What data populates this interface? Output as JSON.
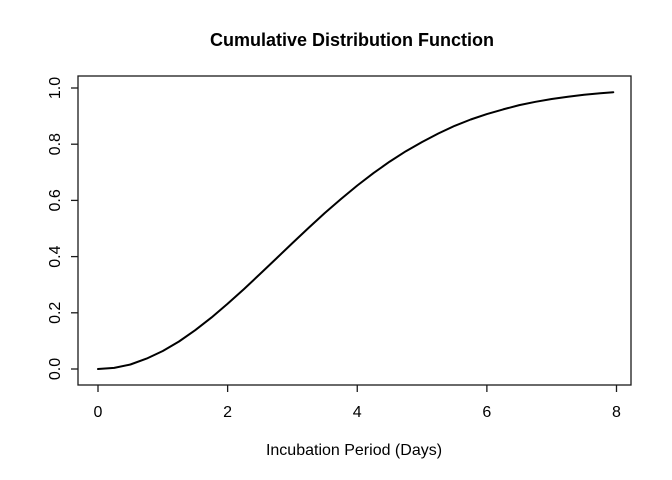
{
  "chart_data": {
    "type": "line",
    "title": "Cumulative Distribution Function",
    "xlabel": "Incubation Period (Days)",
    "ylabel": "",
    "xlim": [
      0,
      8
    ],
    "ylim": [
      0,
      1
    ],
    "x_ticks": [
      0,
      2,
      4,
      6,
      8
    ],
    "x_tick_labels": [
      "0",
      "2",
      "4",
      "6",
      "8"
    ],
    "y_ticks": [
      0.0,
      0.2,
      0.4,
      0.6,
      0.8,
      1.0
    ],
    "y_tick_labels": [
      "0.0",
      "0.2",
      "0.4",
      "0.6",
      "0.8",
      "1.0"
    ],
    "grid": false,
    "legend": false,
    "background_color": "#ffffff",
    "line_color": "#000000",
    "series": [
      {
        "name": "cdf-curve",
        "x": [
          0,
          0.25,
          0.5,
          0.75,
          1,
          1.25,
          1.5,
          1.75,
          2,
          2.25,
          2.5,
          2.75,
          3,
          3.25,
          3.5,
          3.75,
          4,
          4.25,
          4.5,
          4.75,
          5,
          5.25,
          5.5,
          5.75,
          6,
          6.25,
          6.5,
          6.75,
          7,
          7.25,
          7.5,
          7.75,
          7.95
        ],
        "y": [
          0,
          0.004,
          0.016,
          0.037,
          0.064,
          0.098,
          0.138,
          0.183,
          0.232,
          0.284,
          0.338,
          0.393,
          0.448,
          0.502,
          0.555,
          0.605,
          0.653,
          0.697,
          0.738,
          0.775,
          0.808,
          0.838,
          0.865,
          0.888,
          0.907,
          0.924,
          0.939,
          0.951,
          0.961,
          0.969,
          0.976,
          0.981,
          0.985
        ]
      }
    ]
  }
}
